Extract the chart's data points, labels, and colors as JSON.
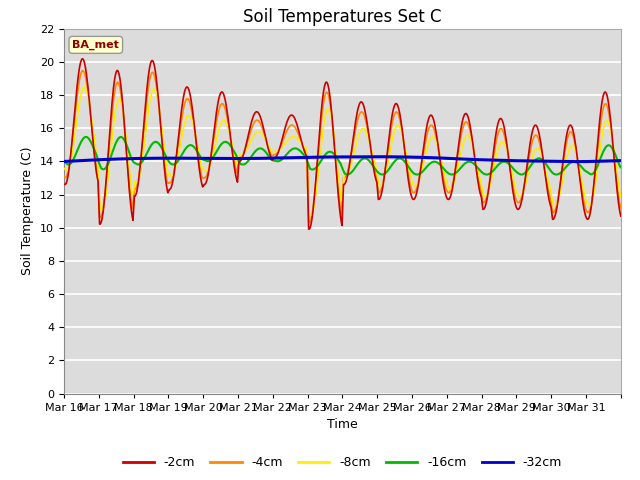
{
  "title": "Soil Temperatures Set C",
  "xlabel": "Time",
  "ylabel": "Soil Temperature (C)",
  "annotation": "BA_met",
  "ylim": [
    0,
    22
  ],
  "yticks": [
    0,
    2,
    4,
    6,
    8,
    10,
    12,
    14,
    16,
    18,
    20,
    22
  ],
  "xtick_labels": [
    "Mar 16",
    "Mar 17",
    "Mar 18",
    "Mar 19",
    "Mar 20",
    "Mar 21",
    "Mar 22",
    "Mar 23",
    "Mar 24",
    "Mar 25",
    "Mar 26",
    "Mar 27",
    "Mar 28",
    "Mar 29",
    "Mar 30",
    "Mar 31"
  ],
  "series_colors": [
    "#cc0000",
    "#ff8800",
    "#ffee00",
    "#00bb00",
    "#0000cc"
  ],
  "series_labels": [
    "-2cm",
    "-4cm",
    "-8cm",
    "-16cm",
    "-32cm"
  ],
  "plot_bg_color": "#dcdcdc",
  "grid_color": "#ffffff",
  "title_fontsize": 12,
  "axis_fontsize": 9,
  "tick_fontsize": 8,
  "daily_peaks_2cm": [
    20.2,
    19.5,
    20.1,
    18.5,
    18.2,
    17.0,
    16.8,
    18.8,
    17.6,
    17.5,
    16.8,
    16.9,
    16.6,
    16.2,
    16.2,
    18.2
  ],
  "daily_troughs_2cm": [
    12.6,
    10.2,
    11.9,
    12.3,
    12.6,
    14.0,
    14.2,
    9.9,
    12.6,
    11.7,
    11.7,
    11.7,
    11.1,
    11.1,
    10.5,
    10.5
  ],
  "daily_peaks_4cm": [
    19.5,
    18.8,
    19.4,
    17.8,
    17.5,
    16.5,
    16.2,
    18.2,
    17.0,
    17.0,
    16.2,
    16.4,
    16.0,
    15.6,
    15.8,
    17.5
  ],
  "daily_troughs_4cm": [
    13.0,
    10.6,
    12.3,
    12.7,
    13.0,
    14.2,
    14.4,
    10.3,
    13.0,
    12.1,
    12.1,
    12.1,
    11.5,
    11.5,
    10.9,
    10.9
  ],
  "daily_peaks_8cm": [
    18.5,
    17.8,
    18.4,
    16.8,
    16.5,
    15.8,
    15.5,
    17.2,
    16.0,
    16.2,
    15.5,
    15.6,
    15.2,
    14.8,
    15.0,
    16.5
  ],
  "daily_troughs_8cm": [
    13.4,
    11.0,
    12.7,
    13.1,
    13.4,
    14.4,
    14.6,
    10.7,
    13.2,
    12.5,
    12.5,
    12.3,
    11.9,
    11.9,
    11.3,
    11.3
  ],
  "daily_peaks_16cm": [
    15.5,
    15.5,
    15.2,
    15.0,
    15.2,
    14.8,
    14.8,
    14.6,
    14.2,
    14.2,
    14.0,
    14.0,
    14.0,
    14.2,
    14.0,
    15.0
  ],
  "daily_troughs_16cm": [
    13.8,
    13.5,
    13.8,
    13.8,
    14.0,
    13.8,
    14.0,
    13.5,
    13.2,
    13.2,
    13.2,
    13.2,
    13.2,
    13.2,
    13.2,
    13.2
  ],
  "base_32cm": [
    14.0,
    14.05,
    14.1,
    14.15,
    14.2,
    14.25,
    14.3,
    14.3,
    14.25,
    14.2,
    14.15,
    14.1,
    14.1,
    14.1,
    14.05,
    14.05
  ]
}
